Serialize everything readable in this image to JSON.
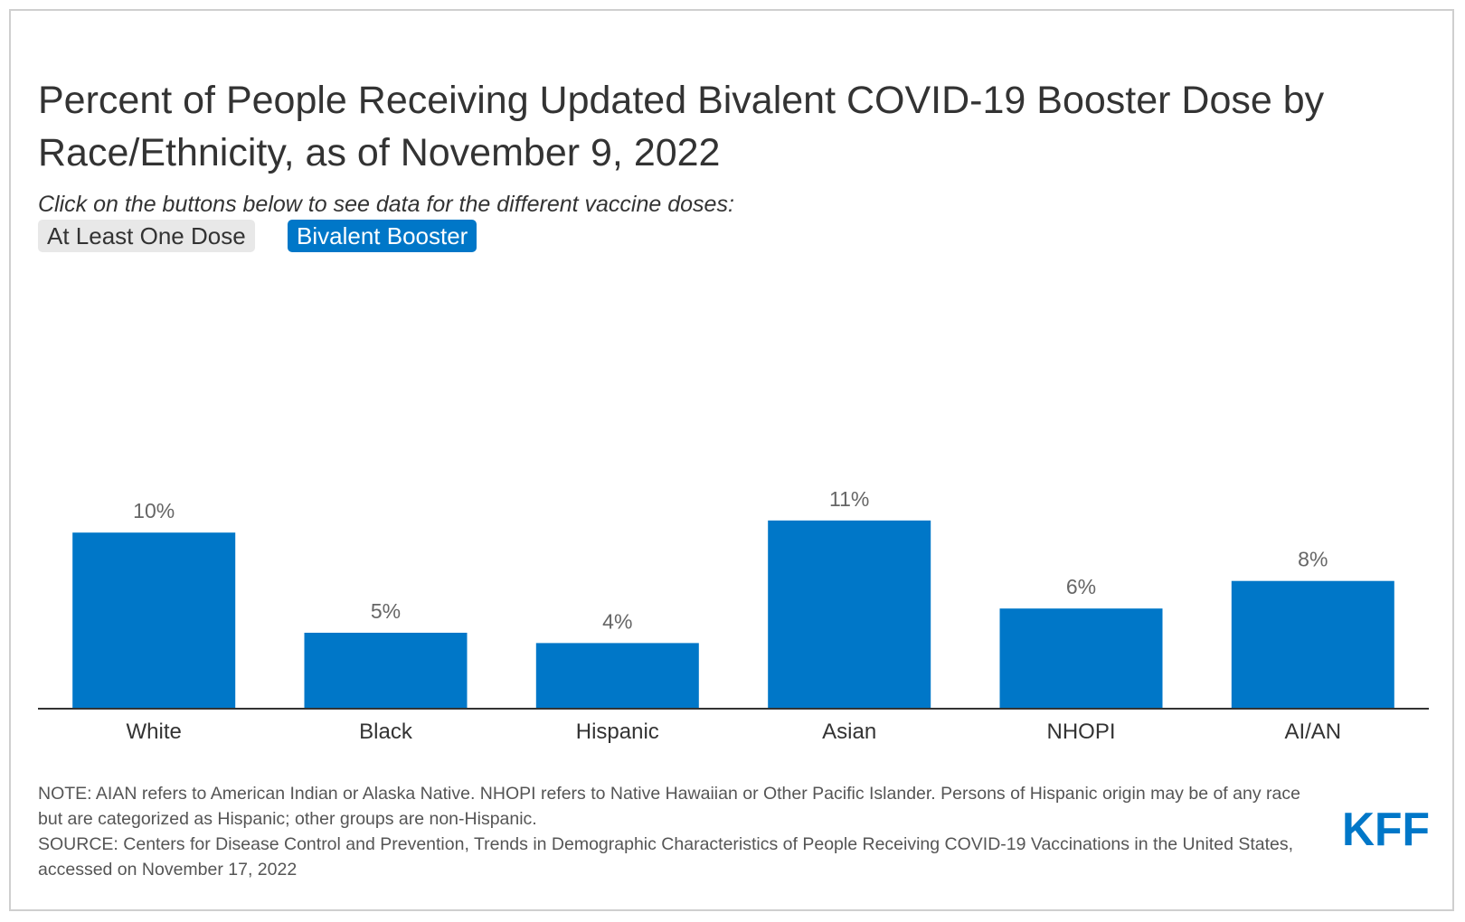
{
  "title": "Percent of People Receiving Updated Bivalent COVID-19 Booster Dose by Race/Ethnicity, as of November 9, 2022",
  "subtitle": "Click on the buttons below to see data for the different vaccine doses:",
  "buttons": [
    {
      "label": "At Least One Dose",
      "active": false
    },
    {
      "label": "Bivalent Booster",
      "active": true
    }
  ],
  "chart_data": {
    "type": "bar",
    "title": "Percent of People Receiving Updated Bivalent COVID-19 Booster Dose by Race/Ethnicity, as of November 9, 2022",
    "categories": [
      "White",
      "Black",
      "Hispanic",
      "Asian",
      "NHOPI",
      "AI/AN"
    ],
    "values": [
      10,
      5,
      4,
      11,
      6,
      8
    ],
    "data_labels": [
      "10%",
      "5%",
      "4%",
      "11%",
      "6%",
      "8%"
    ],
    "value_labels_visible": [
      10.2,
      4.4,
      3.8,
      10.9,
      5.8,
      7.4
    ],
    "unit": "%",
    "xlabel": "",
    "ylabel": "",
    "ylim": [
      0,
      100
    ],
    "grid": false,
    "y_axis_visible": false,
    "bar_color": "#0077c8"
  },
  "notes": {
    "note": "NOTE: AIAN refers to American Indian or Alaska Native. NHOPI refers to Native Hawaiian or Other Pacific Islander. Persons of Hispanic origin may be of any race but are categorized as Hispanic; other groups are non-Hispanic.",
    "source": "SOURCE: Centers for Disease Control and Prevention, Trends in Demographic Characteristics of People Receiving COVID-19 Vaccinations in the United States, accessed on November 17, 2022"
  },
  "logo": {
    "text": "KFF",
    "color": "#0077c8"
  },
  "colors": {
    "accent": "#0077c8",
    "button_inactive": "#e8e8e8",
    "text": "#333333",
    "label": "#666666"
  }
}
